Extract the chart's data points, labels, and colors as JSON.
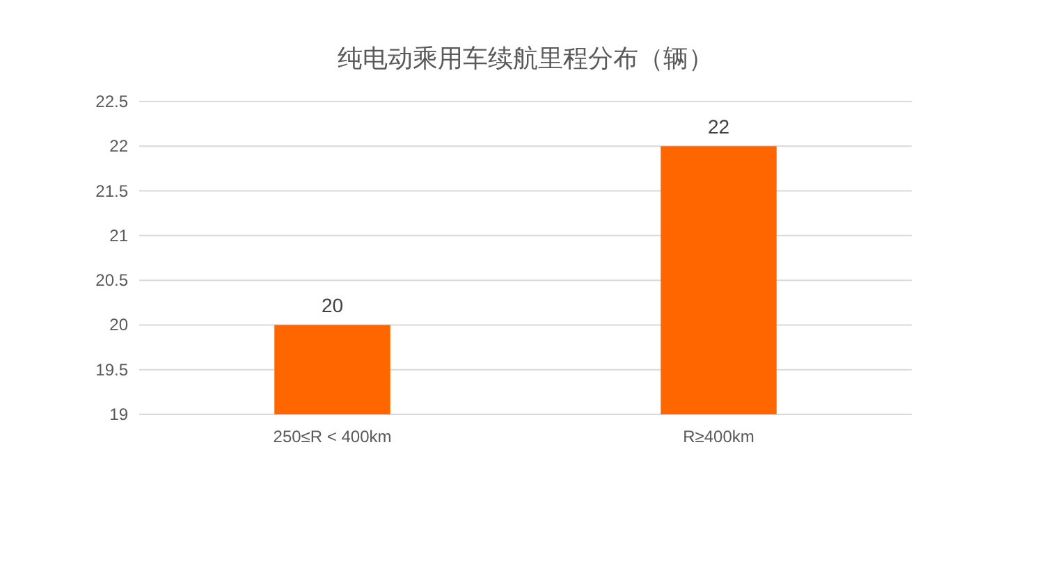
{
  "chart_data": {
    "type": "bar",
    "title": "纯电动乘用车续航里程分布（辆）",
    "categories": [
      "250≤R < 400km",
      "R≥400km"
    ],
    "values": [
      20,
      22
    ],
    "color": "#ff6600",
    "ylim": [
      19,
      22.5
    ],
    "yticks": [
      19,
      19.5,
      20,
      20.5,
      21,
      21.5,
      22,
      22.5
    ],
    "grid": "y",
    "data_labels": true
  }
}
